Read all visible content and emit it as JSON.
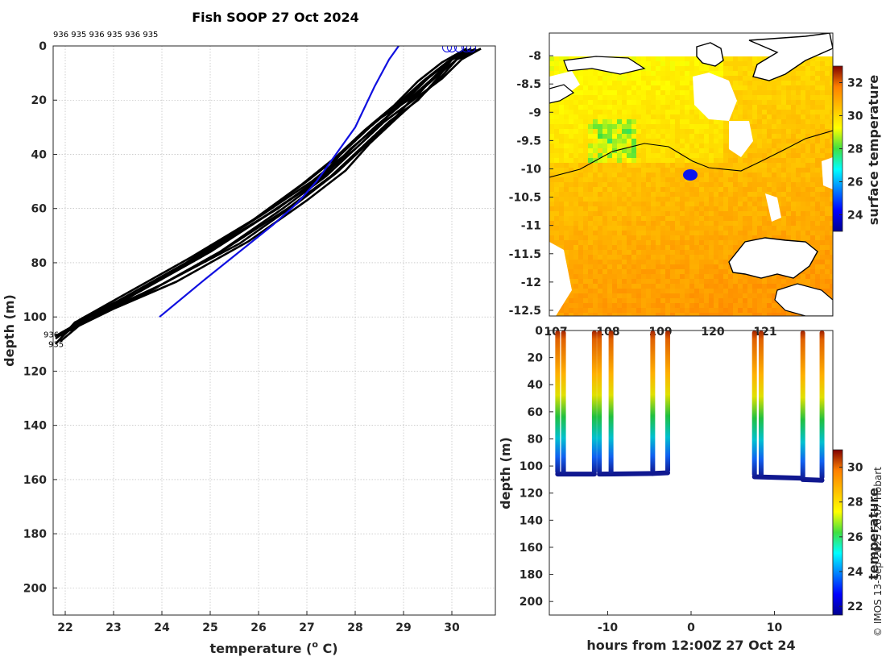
{
  "chart_data": [
    {
      "type": "line",
      "title": "Fish SOOP 27 Oct 2024",
      "xlabel": "temperature (",
      "xlabel_sup": "o",
      "xlabel_unit": " C)",
      "ylabel": "depth (m)",
      "xlim": [
        21.75,
        30.9
      ],
      "ylim": [
        210,
        0
      ],
      "xticks": [
        22,
        23,
        24,
        25,
        26,
        27,
        28,
        29,
        30
      ],
      "yticks": [
        0,
        20,
        40,
        60,
        80,
        100,
        120,
        140,
        160,
        180,
        200
      ],
      "top_labels": "936 935 936 935 936 935",
      "bottom_station_labels": [
        "936",
        "935"
      ],
      "black_color": "#000000",
      "blue_color": "#1010e0",
      "profiles": [
        {
          "t": [
            30.6,
            30.2,
            29.8,
            29.2,
            28.6,
            28.0,
            27.3,
            26.4,
            25.0,
            23.6,
            22.5,
            21.9
          ],
          "d": [
            1,
            5,
            12,
            20,
            28,
            38,
            48,
            60,
            75,
            90,
            100,
            106
          ]
        },
        {
          "t": [
            30.5,
            30.0,
            29.6,
            29.1,
            28.4,
            27.8,
            27.2,
            26.2,
            24.8,
            23.4,
            22.4,
            21.8
          ],
          "d": [
            1,
            5,
            12,
            20,
            28,
            38,
            50,
            62,
            78,
            92,
            101,
            107
          ]
        },
        {
          "t": [
            30.4,
            30.0,
            29.7,
            29.3,
            28.7,
            28.1,
            27.5,
            26.6,
            25.3,
            23.8,
            22.6,
            22.0
          ],
          "d": [
            1,
            5,
            12,
            20,
            28,
            38,
            48,
            60,
            75,
            90,
            99,
            106
          ]
        },
        {
          "t": [
            30.3,
            29.9,
            29.4,
            28.9,
            28.3,
            27.7,
            27.0,
            26.0,
            24.6,
            23.2,
            22.3,
            21.9
          ],
          "d": [
            1,
            6,
            13,
            21,
            30,
            40,
            50,
            63,
            78,
            92,
            101,
            108
          ]
        },
        {
          "t": [
            30.6,
            30.1,
            29.7,
            29.2,
            28.8,
            28.2,
            27.6,
            26.8,
            25.6,
            24.0,
            22.8,
            22.1
          ],
          "d": [
            1,
            5,
            11,
            19,
            27,
            37,
            47,
            58,
            73,
            88,
            98,
            105
          ]
        },
        {
          "t": [
            30.4,
            29.9,
            29.5,
            29.0,
            28.5,
            27.9,
            27.3,
            26.3,
            25.0,
            23.5,
            22.4,
            21.8
          ],
          "d": [
            1,
            6,
            12,
            20,
            29,
            38,
            49,
            61,
            76,
            91,
            100,
            108
          ]
        },
        {
          "t": [
            30.5,
            30.0,
            29.6,
            29.2,
            28.6,
            28.0,
            27.4,
            26.5,
            25.2,
            23.7,
            22.5,
            21.9
          ],
          "d": [
            1,
            5,
            12,
            20,
            28,
            38,
            48,
            60,
            76,
            91,
            100,
            109
          ]
        },
        {
          "t": [
            30.3,
            29.8,
            29.3,
            28.8,
            28.2,
            27.6,
            26.9,
            25.9,
            24.5,
            23.1,
            22.2,
            21.8
          ],
          "d": [
            1,
            6,
            13,
            22,
            31,
            41,
            51,
            64,
            80,
            94,
            102,
            110
          ]
        },
        {
          "t": [
            30.5,
            30.1,
            29.8,
            29.4,
            28.9,
            28.3,
            27.8,
            27.0,
            25.8,
            24.3,
            23.0,
            22.2
          ],
          "d": [
            1,
            5,
            11,
            18,
            26,
            36,
            46,
            57,
            72,
            87,
            97,
            104
          ]
        },
        {
          "t": [
            30.4,
            30.0,
            29.5,
            29.0,
            28.4,
            27.8,
            27.1,
            26.1,
            24.7,
            23.3,
            22.3,
            21.9
          ],
          "d": [
            1,
            5,
            12,
            21,
            30,
            40,
            50,
            62,
            78,
            93,
            101,
            107
          ]
        }
      ],
      "climatology": {
        "t": [
          28.9,
          28.7,
          28.4,
          28.0,
          27.6,
          27.2,
          26.8,
          26.3,
          25.6,
          24.9,
          23.95
        ],
        "d": [
          0,
          5,
          15,
          30,
          40,
          50,
          58,
          66,
          76,
          86,
          100
        ]
      },
      "surface_markers": {
        "t": [
          29.9,
          30.0,
          30.15,
          30.3,
          30.4
        ],
        "d": [
          0,
          0,
          0,
          0,
          0
        ]
      }
    },
    {
      "type": "heatmap",
      "subtype": "map",
      "xticks": [
        "107",
        "108",
        "109",
        "120",
        "121"
      ],
      "yticks": [
        -8,
        -8.5,
        -9,
        -9.5,
        -10,
        -10.5,
        -11,
        -11.5,
        -12,
        -12.5
      ],
      "ylim": [
        -12.6,
        -7.6
      ],
      "colorbar_label": "surface temperature",
      "colorbar_ticks": [
        24,
        26,
        28,
        30,
        32
      ],
      "colorbar_range": [
        23,
        33
      ],
      "ship_position": {
        "lon_frac": 0.5,
        "lat": -10.07
      },
      "ship_color": "#0a14f0"
    },
    {
      "type": "scatter",
      "xlabel": "hours from 12:00Z 27 Oct 24",
      "ylabel": "depth (m)",
      "xlim": [
        -17,
        17
      ],
      "ylim": [
        210,
        0
      ],
      "xticks": [
        -10,
        0,
        10
      ],
      "yticks": [
        0,
        20,
        40,
        60,
        80,
        100,
        120,
        140,
        160,
        180,
        200
      ],
      "colorbar_label": "temperature",
      "colorbar_ticks": [
        22,
        24,
        26,
        28,
        30
      ],
      "colorbar_range": [
        21.5,
        31
      ],
      "cast_hours": [
        -16.0,
        -15.3,
        -11.6,
        -11.0,
        -9.6,
        -4.6,
        -2.8,
        7.6,
        8.4,
        13.4,
        15.7
      ],
      "cast_max_depth": [
        106,
        106,
        106,
        106,
        106,
        105,
        105,
        108,
        108,
        110,
        110
      ],
      "bottom_segments": [
        {
          "h": [
            -16.0,
            -11.6
          ],
          "d": [
            106,
            106
          ]
        },
        {
          "h": [
            -11.0,
            -4.6
          ],
          "d": [
            106,
            105.5
          ]
        },
        {
          "h": [
            -4.6,
            -2.8
          ],
          "d": [
            105.5,
            105
          ]
        },
        {
          "h": [
            7.6,
            13.4
          ],
          "d": [
            108,
            109
          ]
        },
        {
          "h": [
            13.4,
            15.7
          ],
          "d": [
            110,
            110.5
          ]
        }
      ]
    }
  ],
  "credit": "© IMOS 13-Sep-2025 20:07 Hobart"
}
